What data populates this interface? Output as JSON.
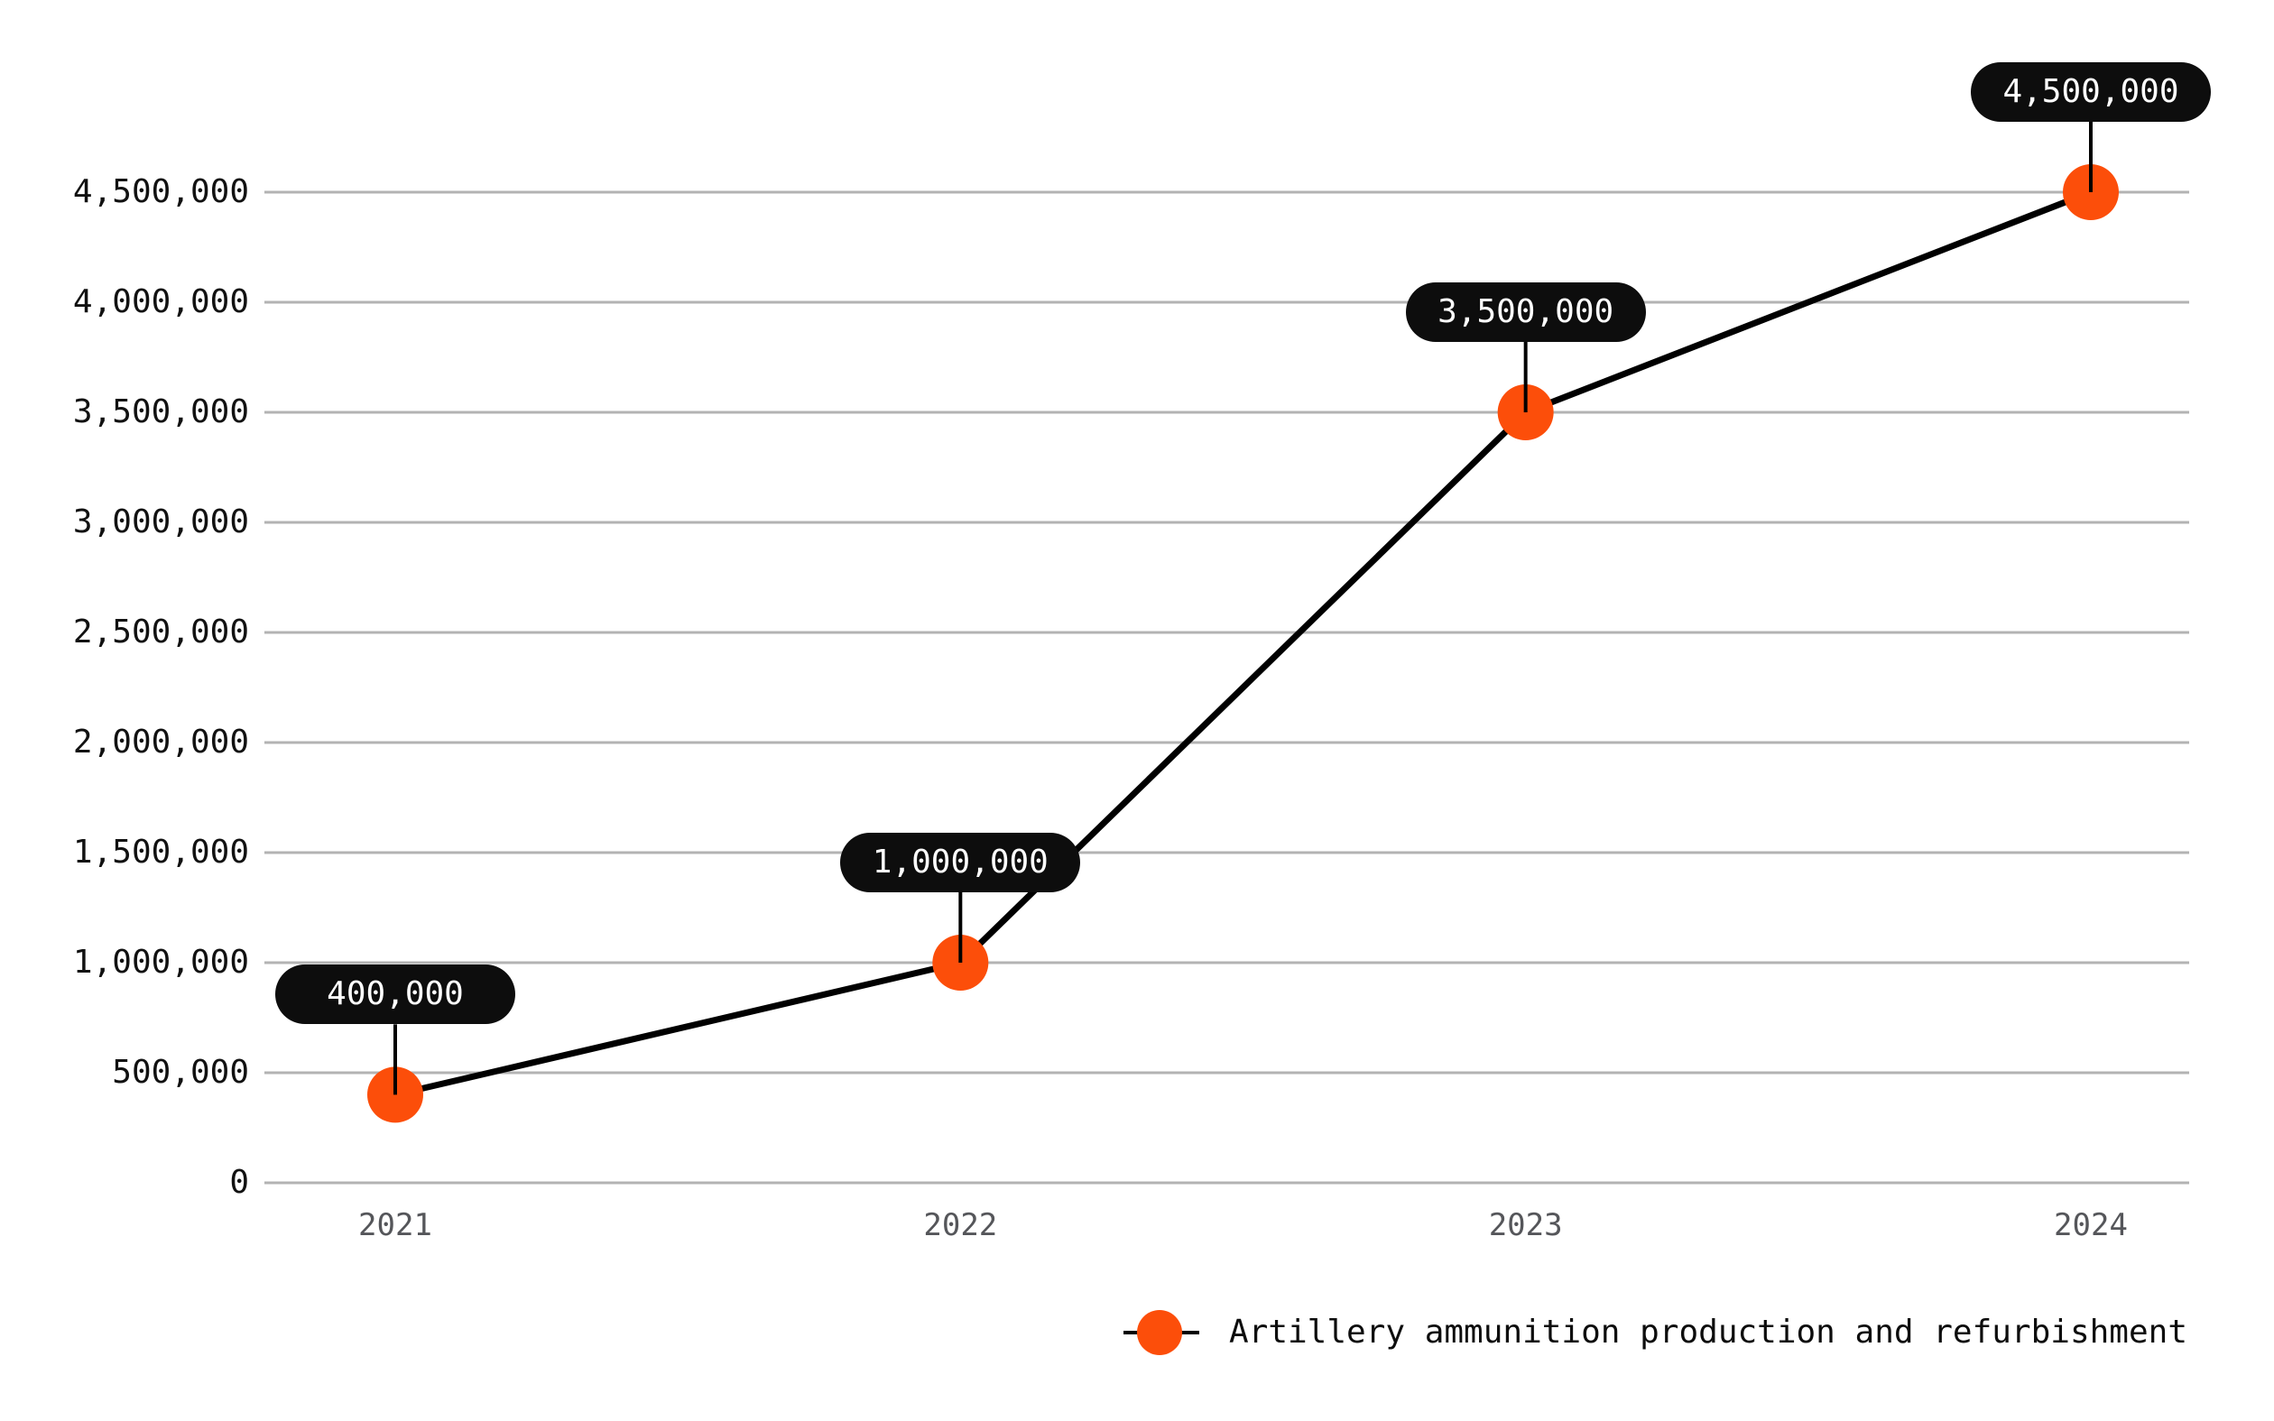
{
  "chart_data": {
    "type": "line",
    "title": "",
    "x": [
      "2021",
      "2022",
      "2023",
      "2024"
    ],
    "series": [
      {
        "name": "Artillery ammunition production and refurbishment",
        "values": [
          400000,
          1000000,
          3500000,
          4500000
        ],
        "point_labels": [
          "400,000",
          "1,000,000",
          "3,500,000",
          "4,500,000"
        ]
      }
    ],
    "y_axis": {
      "min": 0,
      "max": 4500000,
      "step": 500000,
      "tick_labels": [
        "0",
        "500,000",
        "1,000,000",
        "1,500,000",
        "2,000,000",
        "2,500,000",
        "3,000,000",
        "3,500,000",
        "4,000,000",
        "4,500,000"
      ]
    },
    "grid": "horizontal-only",
    "legend_position": "bottom-right",
    "colors": {
      "point": "#fc4e0a",
      "line": "#000000",
      "connector": "#000000",
      "grid": "#b3b3b3",
      "label_pill_bg": "#0d0d0d",
      "label_pill_text": "#ffffff",
      "y_tick_text": "#111111",
      "x_tick_text": "#55565a",
      "background": "#ffffff"
    }
  }
}
